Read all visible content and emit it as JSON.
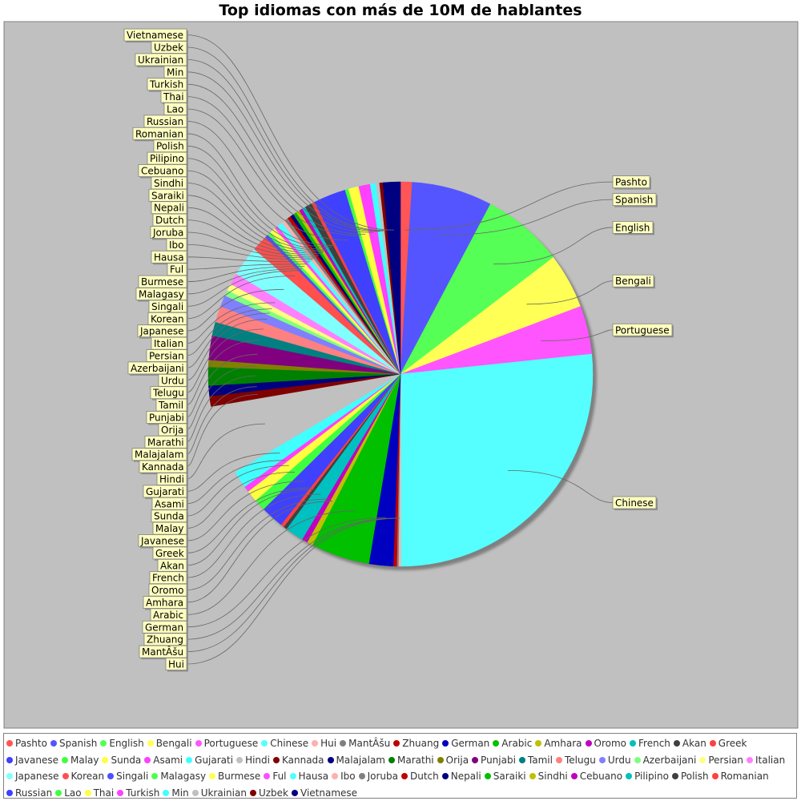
{
  "chart_data": {
    "type": "pie",
    "title": "Top idiomas con más de 10M de hablantes",
    "slices": [
      {
        "label": "Pashto",
        "value": 1.0,
        "color": "#FF5555"
      },
      {
        "label": "Spanish",
        "value": 7.0,
        "color": "#5555FF"
      },
      {
        "label": "English",
        "value": 7.1,
        "color": "#55FF55"
      },
      {
        "label": "Bengali",
        "value": 4.8,
        "color": "#FFFF55"
      },
      {
        "label": "Portuguese",
        "value": 4.2,
        "color": "#FF55FF"
      },
      {
        "label": "Chinese",
        "value": 27.5,
        "color": "#55FFFF"
      },
      {
        "label": "Hui",
        "value": 0.2,
        "color": "#FFAFAF"
      },
      {
        "label": "MantÂšu",
        "value": 0.15,
        "color": "#808080"
      },
      {
        "label": "Zhuang",
        "value": 0.3,
        "color": "#C00000"
      },
      {
        "label": "German",
        "value": 2.1,
        "color": "#0000C0"
      },
      {
        "label": "Arabic",
        "value": 5.1,
        "color": "#00C000"
      },
      {
        "label": "Amhara",
        "value": 0.5,
        "color": "#C0C000"
      },
      {
        "label": "Oromo",
        "value": 0.5,
        "color": "#C000C0"
      },
      {
        "label": "French",
        "value": 1.6,
        "color": "#00C0C0"
      },
      {
        "label": "Akan",
        "value": 0.3,
        "color": "#404040"
      },
      {
        "label": "Greek",
        "value": 0.3,
        "color": "#FF4040"
      },
      {
        "label": "Javanese",
        "value": 2.0,
        "color": "#4040FF"
      },
      {
        "label": "Malay",
        "value": 1.0,
        "color": "#40FF40"
      },
      {
        "label": "Sunda",
        "value": 1.0,
        "color": "#FFFF40"
      },
      {
        "label": "Asami",
        "value": 0.5,
        "color": "#FF40FF"
      },
      {
        "label": "Gujarati",
        "value": 1.5,
        "color": "#40FFFF"
      },
      {
        "label": "Hindi",
        "value": 6.0,
        "color": "#C0C0C0"
      },
      {
        "label": "Kannada",
        "value": 0.9,
        "color": "#800000"
      },
      {
        "label": "Malajalam",
        "value": 0.9,
        "color": "#000080"
      },
      {
        "label": "Marathi",
        "value": 1.6,
        "color": "#008000"
      },
      {
        "label": "Orija",
        "value": 0.6,
        "color": "#808000"
      },
      {
        "label": "Punjabi",
        "value": 2.1,
        "color": "#800080"
      },
      {
        "label": "Tamil",
        "value": 1.2,
        "color": "#008080"
      },
      {
        "label": "Telugu",
        "value": 1.4,
        "color": "#FF8080"
      },
      {
        "label": "Urdu",
        "value": 1.0,
        "color": "#8080FF"
      },
      {
        "label": "Azerbaijani",
        "value": 0.5,
        "color": "#80FF80"
      },
      {
        "label": "Persian",
        "value": 0.6,
        "color": "#FFFF80"
      },
      {
        "label": "Italian",
        "value": 1.0,
        "color": "#FF80FF"
      },
      {
        "label": "Japanese",
        "value": 2.6,
        "color": "#80FFFF"
      },
      {
        "label": "Korean",
        "value": 1.4,
        "color": "#FF4F4F"
      },
      {
        "label": "Singali",
        "value": 0.3,
        "color": "#4F4FFF"
      },
      {
        "label": "Malagasy",
        "value": 0.3,
        "color": "#4FFF4F"
      },
      {
        "label": "Burmese",
        "value": 0.5,
        "color": "#FFFF4F"
      },
      {
        "label": "Ful",
        "value": 0.3,
        "color": "#FF4FFF"
      },
      {
        "label": "Hausa",
        "value": 0.5,
        "color": "#4FFFFF"
      },
      {
        "label": "Ibo",
        "value": 0.3,
        "color": "#FFAFAF"
      },
      {
        "label": "Joruba",
        "value": 0.3,
        "color": "#808080"
      },
      {
        "label": "Dutch",
        "value": 0.3,
        "color": "#C00000"
      },
      {
        "label": "Nepali",
        "value": 0.3,
        "color": "#000080"
      },
      {
        "label": "Saraiki",
        "value": 0.3,
        "color": "#00C000"
      },
      {
        "label": "Sindhi",
        "value": 0.3,
        "color": "#C0C000"
      },
      {
        "label": "Cebuano",
        "value": 0.3,
        "color": "#C000C0"
      },
      {
        "label": "Pilipino",
        "value": 0.3,
        "color": "#00C0C0"
      },
      {
        "label": "Polish",
        "value": 0.6,
        "color": "#404040"
      },
      {
        "label": "Romanian",
        "value": 0.3,
        "color": "#FF4040"
      },
      {
        "label": "Russian",
        "value": 2.8,
        "color": "#4040FF"
      },
      {
        "label": "Lao",
        "value": 0.3,
        "color": "#40FF40"
      },
      {
        "label": "Thai",
        "value": 0.9,
        "color": "#FFFF40"
      },
      {
        "label": "Turkish",
        "value": 1.0,
        "color": "#FF40FF"
      },
      {
        "label": "Min",
        "value": 0.5,
        "color": "#40FFFF"
      },
      {
        "label": "Ukrainian",
        "value": 0.3,
        "color": "#C0C0C0"
      },
      {
        "label": "Uzbek",
        "value": 0.3,
        "color": "#800000"
      },
      {
        "label": "Vietnamese",
        "value": 1.5,
        "color": "#000080"
      }
    ],
    "legend_placement": "bottom",
    "start_angle_deg": 90,
    "direction": "clockwise"
  },
  "colors": {
    "plot_background": "#C0C0C0",
    "label_background": "#FFFFC0",
    "label_border": "#808080",
    "leader_line": "#666666"
  }
}
